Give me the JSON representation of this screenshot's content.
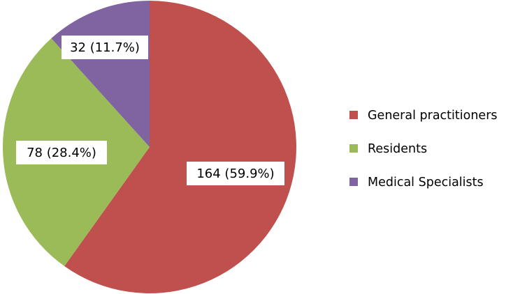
{
  "chart_data": {
    "type": "pie",
    "title": "",
    "categories": [
      "General practitioners",
      "Residents",
      "Medical Specialists"
    ],
    "values": [
      164,
      78,
      32
    ],
    "percent_labels": [
      "59.9%",
      "28.4%",
      "11.7%"
    ],
    "data_labels": [
      "164 (59.9%)",
      "78 (28.4%)",
      "32 (11.7%)"
    ],
    "colors": [
      "#c0504d",
      "#9bbb59",
      "#8064a2"
    ],
    "start_angle": "12 o'clock",
    "direction": "clockwise",
    "legend_position": "right"
  }
}
